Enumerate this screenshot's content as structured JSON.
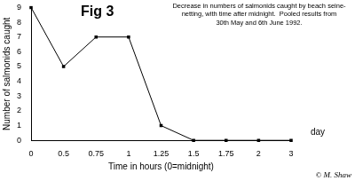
{
  "chart_data": {
    "type": "line",
    "title": "Fig 3",
    "subtitle": [
      "Decrease in numbers of salmonids caught by beach seine-",
      "netting, with time after midnight.  Pooled results from",
      "30th May and 6th June 1992."
    ],
    "x_label": "Time in hours (0=midnight)",
    "y_label": "Number of salmonids caught",
    "annotations": [
      "day",
      "© M. Shaw"
    ],
    "categories": [
      "0",
      "0.5",
      "0.75",
      "1",
      "1.25",
      "1.5",
      "1.75",
      "2",
      "3"
    ],
    "values": [
      9,
      5,
      7,
      7,
      1,
      0,
      0,
      0,
      0
    ],
    "color": "#000000",
    "marker": "square",
    "ylim": [
      0,
      9
    ],
    "yticks": [
      0,
      1,
      2,
      3,
      4,
      5,
      6,
      7,
      8,
      9
    ],
    "grid": false
  }
}
